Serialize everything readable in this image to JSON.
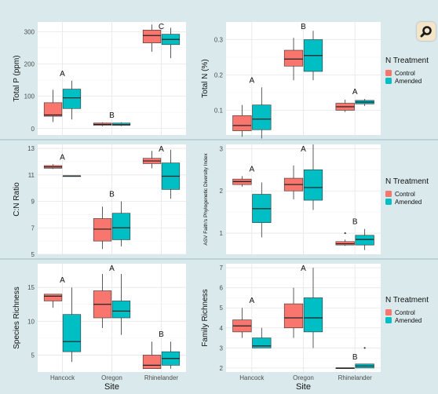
{
  "colors": {
    "control": "#f8766d",
    "amended": "#00bfc4"
  },
  "icon": "zoom-lens-icon",
  "chart_data": [
    {
      "type": "box",
      "ylabel": "Total P (ppm)",
      "ylim": [
        -20,
        330
      ],
      "yticks": [
        0,
        100,
        200,
        300
      ],
      "ytick_labels": [
        "0",
        "100",
        "200",
        "300"
      ],
      "categories": [
        "Hancock",
        "Oregon",
        "Rhinelander"
      ],
      "letters": [
        "A",
        "B",
        "C"
      ],
      "series": [
        {
          "name": "Control",
          "boxes": [
            {
              "whislo": 20,
              "q1": 38,
              "med": 42,
              "q3": 80,
              "whishi": 120
            },
            {
              "whislo": 7,
              "q1": 10,
              "med": 13,
              "q3": 17,
              "whishi": 19
            },
            {
              "whislo": 238,
              "q1": 265,
              "med": 288,
              "q3": 305,
              "whishi": 322
            }
          ]
        },
        {
          "name": "Amended",
          "boxes": [
            {
              "whislo": 28,
              "q1": 62,
              "med": 95,
              "q3": 122,
              "whishi": 148
            },
            {
              "whislo": 8,
              "q1": 10,
              "med": 12,
              "q3": 17,
              "whishi": 19
            },
            {
              "whislo": 218,
              "q1": 260,
              "med": 276,
              "q3": 292,
              "whishi": 312
            }
          ]
        }
      ]
    },
    {
      "type": "box",
      "ylabel": "Total N (%)",
      "ylim": [
        0.03,
        0.35
      ],
      "yticks": [
        0.1,
        0.2,
        0.3
      ],
      "ytick_labels": [
        "0.1",
        "0.2",
        "0.3"
      ],
      "categories": [
        "Hancock",
        "Oregon",
        "Rhinelander"
      ],
      "letters": [
        "A",
        "B",
        "A"
      ],
      "series": [
        {
          "name": "Control",
          "boxes": [
            {
              "whislo": 0.025,
              "q1": 0.042,
              "med": 0.057,
              "q3": 0.085,
              "whishi": 0.115
            },
            {
              "whislo": 0.185,
              "q1": 0.225,
              "med": 0.245,
              "q3": 0.27,
              "whishi": 0.305
            },
            {
              "whislo": 0.095,
              "q1": 0.1,
              "med": 0.11,
              "q3": 0.12,
              "whishi": 0.13
            }
          ]
        },
        {
          "name": "Amended",
          "boxes": [
            {
              "whislo": 0.02,
              "q1": 0.045,
              "med": 0.075,
              "q3": 0.115,
              "whishi": 0.165
            },
            {
              "whislo": 0.185,
              "q1": 0.21,
              "med": 0.255,
              "q3": 0.3,
              "whishi": 0.325
            },
            {
              "whislo": 0.112,
              "q1": 0.118,
              "med": 0.123,
              "q3": 0.128,
              "whishi": 0.132
            }
          ]
        }
      ]
    },
    {
      "type": "box",
      "ylabel": "C:N Ratio",
      "ylim": [
        5,
        13.3
      ],
      "yticks": [
        5,
        7,
        9,
        11,
        13
      ],
      "ytick_labels": [
        "5",
        "7",
        "9",
        "11",
        "13"
      ],
      "categories": [
        "Hancock",
        "Oregon",
        "Rhinelander"
      ],
      "letters": [
        "A",
        "B",
        "A"
      ],
      "series": [
        {
          "name": "Control",
          "boxes": [
            {
              "whislo": 11.45,
              "q1": 11.5,
              "med": 11.6,
              "q3": 11.7,
              "whishi": 11.8
            },
            {
              "whislo": 5.4,
              "q1": 6.0,
              "med": 6.9,
              "q3": 7.7,
              "whishi": 8.6
            },
            {
              "whislo": 11.5,
              "q1": 11.85,
              "med": 12.05,
              "q3": 12.25,
              "whishi": 12.8
            }
          ]
        },
        {
          "name": "Amended",
          "boxes": [
            {
              "whislo": 10.92,
              "q1": 10.92,
              "med": 10.92,
              "q3": 10.92,
              "whishi": 10.92
            },
            {
              "whislo": 5.6,
              "q1": 6.1,
              "med": 7.0,
              "q3": 8.1,
              "whishi": 9.0
            },
            {
              "whislo": 9.2,
              "q1": 9.9,
              "med": 10.9,
              "q3": 11.9,
              "whishi": 12.9
            }
          ]
        }
      ]
    },
    {
      "type": "box",
      "ylabel": "ASV Faith's Phylogenetic Diversity Index",
      "ylim": [
        0.5,
        3.1
      ],
      "yticks": [
        1,
        2,
        3
      ],
      "ytick_labels": [
        "1",
        "2",
        "3"
      ],
      "categories": [
        "Hancock",
        "Oregon",
        "Rhinelander"
      ],
      "letters": [
        "A",
        "A",
        "B"
      ],
      "series": [
        {
          "name": "Control",
          "boxes": [
            {
              "whislo": 2.1,
              "q1": 2.15,
              "med": 2.22,
              "q3": 2.28,
              "whishi": 2.35
            },
            {
              "whislo": 1.8,
              "q1": 2.0,
              "med": 2.15,
              "q3": 2.3,
              "whishi": 2.6
            },
            {
              "whislo": 0.7,
              "q1": 0.72,
              "med": 0.75,
              "q3": 0.8,
              "whishi": 0.85,
              "outliers": [
                1.0
              ]
            }
          ]
        },
        {
          "name": "Amended",
          "boxes": [
            {
              "whislo": 0.9,
              "q1": 1.25,
              "med": 1.58,
              "q3": 1.92,
              "whishi": 2.2
            },
            {
              "whislo": 1.55,
              "q1": 1.78,
              "med": 2.08,
              "q3": 2.5,
              "whishi": 3.1
            },
            {
              "whislo": 0.6,
              "q1": 0.72,
              "med": 0.85,
              "q3": 0.95,
              "whishi": 1.1
            }
          ]
        }
      ]
    },
    {
      "type": "box",
      "ylabel": "Species Richness",
      "ylim": [
        2.5,
        18.5
      ],
      "yticks": [
        5,
        10,
        15
      ],
      "ytick_labels": [
        "5",
        "10",
        "15"
      ],
      "categories": [
        "Hancock",
        "Oregon",
        "Rhinelander"
      ],
      "letters": [
        "A",
        "A",
        "B"
      ],
      "series": [
        {
          "name": "Control",
          "boxes": [
            {
              "whislo": 12,
              "q1": 13,
              "med": 13.7,
              "q3": 14,
              "whishi": 14
            },
            {
              "whislo": 9,
              "q1": 10.5,
              "med": 12.5,
              "q3": 14.5,
              "whishi": 17
            },
            {
              "whislo": 3,
              "q1": 3,
              "med": 3.5,
              "q3": 5,
              "whishi": 7
            }
          ]
        },
        {
          "name": "Amended",
          "boxes": [
            {
              "whislo": 4,
              "q1": 5.5,
              "med": 7,
              "q3": 11,
              "whishi": 15
            },
            {
              "whislo": 8,
              "q1": 10.5,
              "med": 11.5,
              "q3": 13,
              "whishi": 17
            },
            {
              "whislo": 3,
              "q1": 3.5,
              "med": 4.5,
              "q3": 5.5,
              "whishi": 7
            }
          ]
        }
      ]
    },
    {
      "type": "box",
      "ylabel": "Family Richness",
      "ylim": [
        1.8,
        7.2
      ],
      "yticks": [
        2,
        3,
        4,
        5,
        6,
        7
      ],
      "ytick_labels": [
        "2",
        "3",
        "4",
        "5",
        "6",
        "7"
      ],
      "categories": [
        "Hancock",
        "Oregon",
        "Rhinelander"
      ],
      "letters": [
        "A",
        "A",
        "B"
      ],
      "series": [
        {
          "name": "Control",
          "boxes": [
            {
              "whislo": 3.5,
              "q1": 3.8,
              "med": 4.1,
              "q3": 4.4,
              "whishi": 5
            },
            {
              "whislo": 3.5,
              "q1": 4,
              "med": 4.5,
              "q3": 5.2,
              "whishi": 6
            },
            {
              "whislo": 2,
              "q1": 2,
              "med": 2,
              "q3": 2,
              "whishi": 2
            }
          ]
        },
        {
          "name": "Amended",
          "boxes": [
            {
              "whislo": 3,
              "q1": 3,
              "med": 3.1,
              "q3": 3.5,
              "whishi": 4
            },
            {
              "whislo": 3,
              "q1": 3.8,
              "med": 4.5,
              "q3": 5.5,
              "whishi": 7
            },
            {
              "whislo": 2,
              "q1": 2,
              "med": 2.1,
              "q3": 2.2,
              "whishi": 2.2,
              "outliers": [
                3
              ]
            }
          ]
        }
      ]
    }
  ],
  "x_axis": {
    "title": "Site",
    "categories": [
      "Hancock",
      "Oregon",
      "Rhinelander"
    ]
  },
  "legend": {
    "title": "N Treatment",
    "entries": [
      "Control",
      "Amended"
    ]
  }
}
